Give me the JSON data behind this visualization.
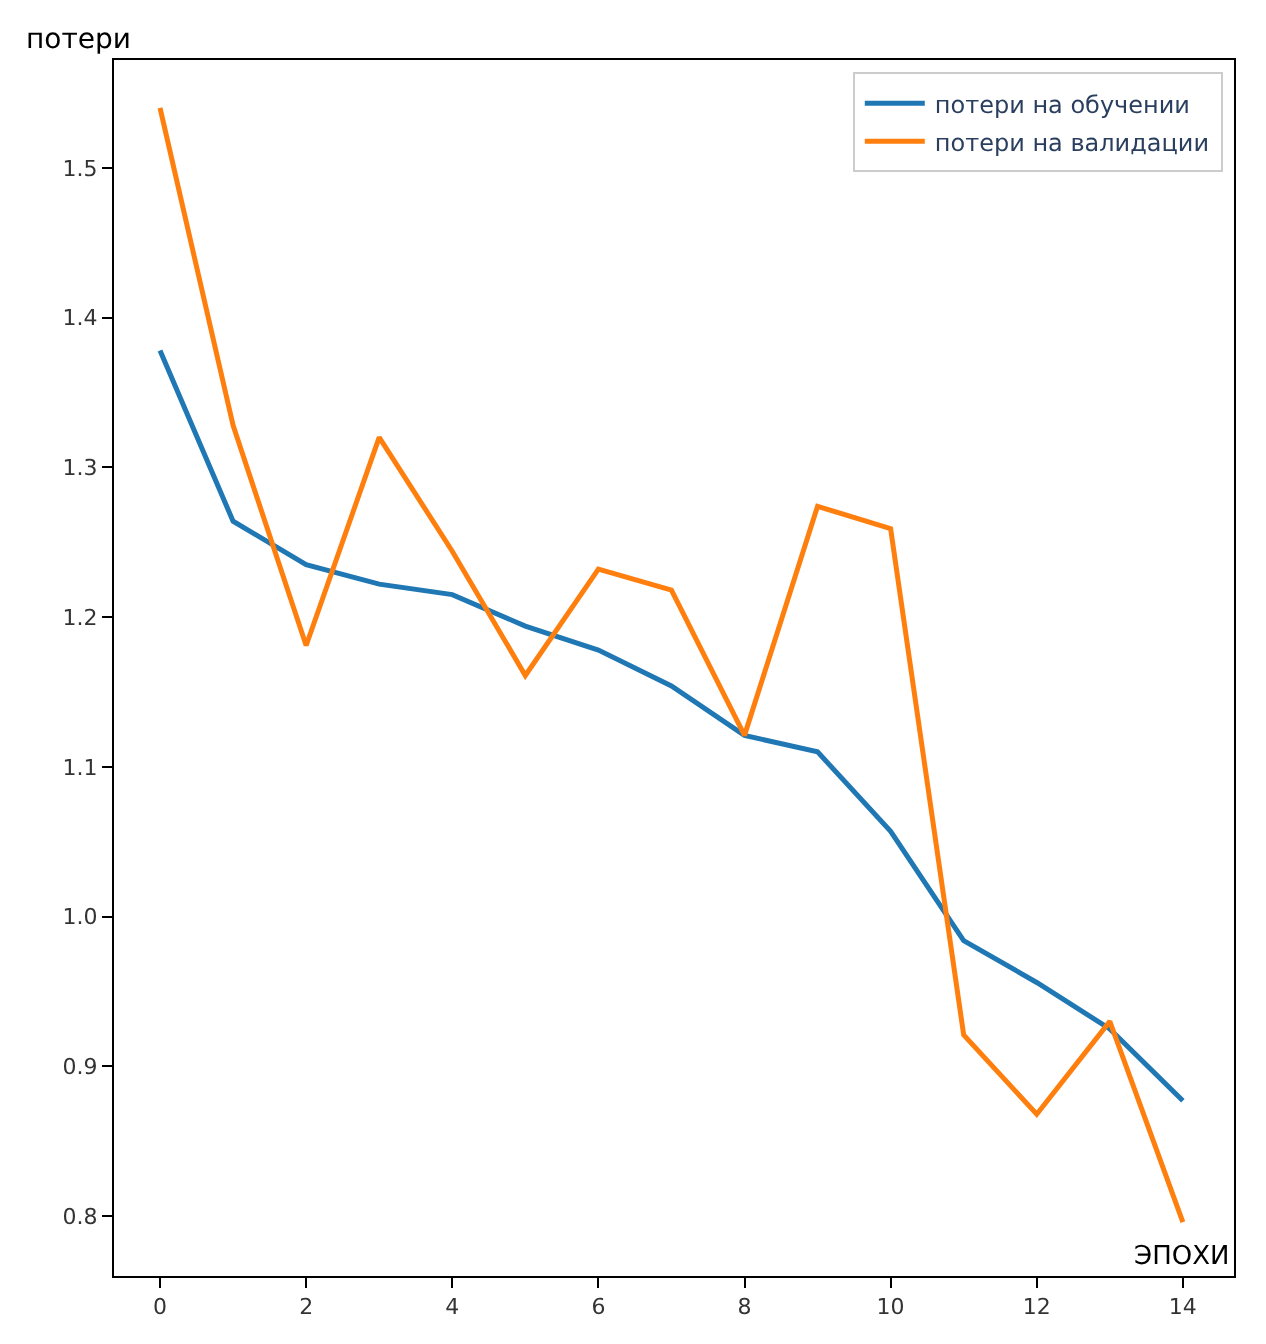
{
  "chart_data": {
    "type": "line",
    "xlabel": "ЭПОХИ",
    "ylabel": "потери",
    "x": [
      0,
      1,
      2,
      3,
      4,
      5,
      6,
      7,
      8,
      9,
      10,
      11,
      12,
      13,
      14
    ],
    "series": [
      {
        "name": "потери на обучении",
        "color": "#1f77b4",
        "values": [
          1.378,
          1.264,
          1.235,
          1.222,
          1.215,
          1.194,
          1.178,
          1.154,
          1.121,
          1.11,
          1.057,
          0.984,
          0.956,
          0.925,
          0.877
        ]
      },
      {
        "name": "потери на валидации",
        "color": "#ff7f0e",
        "values": [
          1.54,
          1.328,
          1.181,
          1.32,
          1.244,
          1.161,
          1.232,
          1.218,
          1.121,
          1.274,
          1.259,
          0.921,
          0.868,
          0.93,
          0.796
        ]
      }
    ],
    "xlim": [
      -0.63,
      14.7
    ],
    "ylim": [
      0.76,
      1.572
    ],
    "xticks": [
      0,
      2,
      4,
      6,
      8,
      10,
      12,
      14
    ],
    "yticks": [
      0.8,
      0.9,
      {
        "value": 1.0,
        "label": "1.0"
      },
      1.1,
      1.2,
      1.3,
      1.4,
      1.5
    ],
    "legend": "top right",
    "marker": "none",
    "line_style": "solid"
  }
}
